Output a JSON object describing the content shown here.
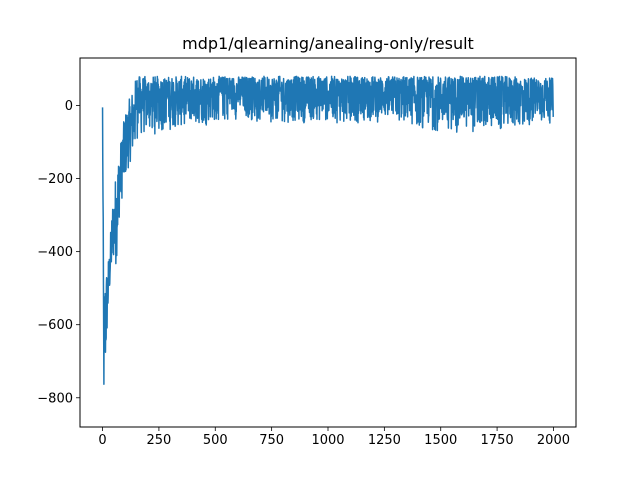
{
  "chart_data": {
    "type": "line",
    "title": "mdp1/qlearning/anealing-only/result",
    "xlabel": "",
    "ylabel": "",
    "xlim": [
      -100,
      2100
    ],
    "ylim": [
      -880,
      130
    ],
    "xticks": [
      0,
      250,
      500,
      750,
      1000,
      1250,
      1500,
      1750,
      2000
    ],
    "xtick_labels": [
      "0",
      "250",
      "500",
      "750",
      "1000",
      "1250",
      "1500",
      "1750",
      "2000"
    ],
    "yticks": [
      -800,
      -600,
      -400,
      -200,
      0
    ],
    "ytick_labels": [
      "−800",
      "−600",
      "−400",
      "−200",
      "0"
    ],
    "grid": false,
    "legend": "none",
    "color": "#1f77b4",
    "series": [
      {
        "n_points": 2000,
        "envelope": {
          "x": [
            0,
            5,
            10,
            20,
            30,
            45,
            60,
            75,
            100,
            125,
            150,
            200,
            250,
            400,
            600,
            800,
            1000,
            1250,
            1500,
            1750,
            2000
          ],
          "low": [
            -5,
            -830,
            -770,
            -630,
            -520,
            -420,
            -440,
            -300,
            -200,
            -150,
            -100,
            -90,
            -80,
            -60,
            -40,
            -50,
            -50,
            -50,
            -75,
            -80,
            -50
          ],
          "high": [
            -5,
            -510,
            -460,
            -440,
            -400,
            -260,
            -180,
            -120,
            -20,
            30,
            80,
            80,
            80,
            80,
            80,
            80,
            80,
            80,
            80,
            80,
            75
          ]
        }
      }
    ]
  }
}
